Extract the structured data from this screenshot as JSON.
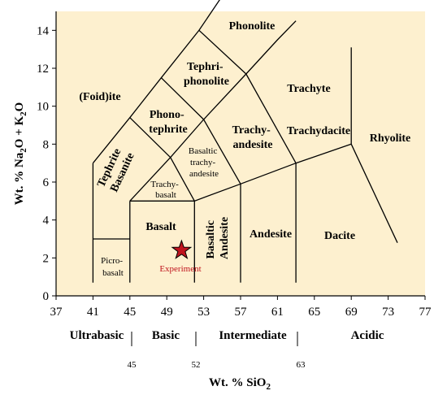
{
  "diagram": {
    "background": "#fdf0cf",
    "line_color": "#000000",
    "sample_color": "#c0141e",
    "x_range": [
      37,
      77
    ],
    "y_range": [
      0,
      15
    ],
    "x_ticks": [
      "37",
      "41",
      "45",
      "49",
      "53",
      "57",
      "61",
      "65",
      "69",
      "73",
      "77"
    ],
    "y_ticks": [
      "0",
      "2",
      "4",
      "6",
      "8",
      "10",
      "12",
      "14"
    ],
    "fields": {
      "phonolite": "Phonolite",
      "tephriphonolite": [
        "Tephri-",
        "phonolite"
      ],
      "foidite": "(Foid)ite",
      "phonotephrite": [
        "Phono-",
        "tephrite"
      ],
      "trachyte": "Trachyte",
      "trachyandesite": [
        "Trachy-",
        "andesite"
      ],
      "trachydacite": "Trachydacite",
      "rhyolite": "Rhyolite",
      "tephrite_basanite": [
        "Tephrite",
        "Basanite"
      ],
      "basaltic_trachyandesite": [
        "Basaltic",
        "trachy-",
        "andesite"
      ],
      "trachybasalt": [
        "Trachy-",
        "basalt"
      ],
      "basalt": "Basalt",
      "basaltic_andesite": [
        "Basaltic",
        "Andesite"
      ],
      "andesite": "Andesite",
      "dacite": "Dacite",
      "picrobasalt": [
        "Picro-",
        "basalt"
      ]
    },
    "sample": {
      "label": "Experiment",
      "x": 50.6,
      "y": 2.4,
      "marker": "star"
    },
    "y_axis_label": {
      "pre": "Wt. % Na",
      "sub1": "2",
      "mid": "O + K",
      "sub2": "2",
      "post": "O"
    },
    "x_axis_label": {
      "pre": "Wt. % SiO",
      "sub": "2"
    },
    "silica_groups": [
      {
        "name": "Ultrabasic"
      },
      {
        "name": "Basic"
      },
      {
        "name": "Intermediate"
      },
      {
        "name": "Acidic"
      }
    ],
    "group_boundaries": [
      "45",
      "52",
      "63"
    ]
  }
}
